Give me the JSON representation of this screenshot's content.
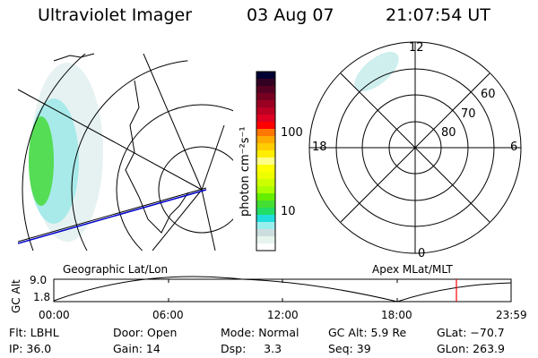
{
  "header": {
    "instrument": "Ultraviolet Imager",
    "date": "03 Aug 07",
    "time": "21:07:54 UT"
  },
  "colorbar": {
    "label": "photon cm⁻²s⁻¹",
    "ticks": [
      "100",
      "10"
    ],
    "colors": [
      "#000033",
      "#330022",
      "#550022",
      "#770022",
      "#990022",
      "#bb0022",
      "#dd0022",
      "#ff0000",
      "#ff7700",
      "#ffaa00",
      "#ffcc00",
      "#ffee00",
      "#ffff88",
      "#ffff00",
      "#eeff00",
      "#ccff00",
      "#aaff00",
      "#66ee00",
      "#44dd33",
      "#22dd66",
      "#22dddd",
      "#99eeee",
      "#ccdddd",
      "#e8f4ee",
      "#ffffff"
    ]
  },
  "polar": {
    "labels": {
      "top": "12",
      "left": "18",
      "right": "6",
      "bottom": "0"
    },
    "rings": [
      "60",
      "70",
      "80"
    ]
  },
  "orbit": {
    "left_title": "Geographic Lat/Lon",
    "right_title": "Apex MLat/MLT",
    "ylabel": "GC Alt",
    "ymax": "9.0",
    "ymin": "1.8",
    "xticks": [
      "00:00",
      "06:00",
      "12:00",
      "18:00",
      "23:59"
    ],
    "current_time_hours": 21.13,
    "line_color": "#ff0000"
  },
  "info": {
    "row1": [
      "Flt: LBHL",
      "Door: Open",
      "Mode: Normal",
      "GC Alt: 5.9 Re",
      "GLat: −70.7"
    ],
    "row2": [
      "IP: 36.0",
      "Gain: 14",
      "Dsp:     3.3",
      "Seq: 39",
      "GLon: 263.9"
    ]
  }
}
